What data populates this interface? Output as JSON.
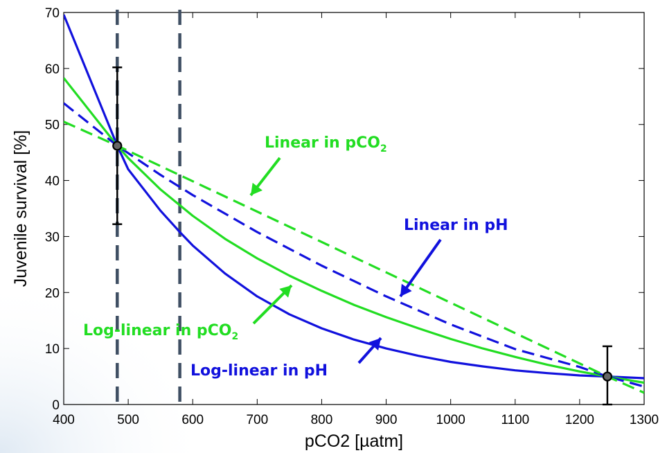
{
  "chart_data": {
    "type": "line",
    "xlabel": "pCO2 [µatm]",
    "ylabel": "Juvenile survival [%]",
    "xlim": [
      400,
      1300
    ],
    "ylim": [
      0,
      70
    ],
    "xticks": [
      400,
      500,
      600,
      700,
      800,
      900,
      1000,
      1100,
      1200,
      1300
    ],
    "yticks": [
      0,
      10,
      20,
      30,
      40,
      50,
      60,
      70
    ],
    "grid": false,
    "colors": {
      "green": "#22dd22",
      "blue": "#1111dd",
      "vline": "#3f4f63",
      "error": "#000000"
    },
    "series": [
      {
        "key": "log_linear_ph",
        "color": "#1111dd",
        "dash": false,
        "x": [
          400,
          450,
          483,
          500,
          550,
          580,
          600,
          650,
          700,
          750,
          800,
          850,
          900,
          950,
          1000,
          1050,
          1100,
          1150,
          1200,
          1243,
          1300
        ],
        "y": [
          69.6,
          55.5,
          46.2,
          42.0,
          34.6,
          30.8,
          28.4,
          23.4,
          19.3,
          16.1,
          13.6,
          11.6,
          10.0,
          8.7,
          7.6,
          6.8,
          6.1,
          5.6,
          5.2,
          5.0,
          4.7
        ]
      },
      {
        "key": "log_linear_pco2",
        "color": "#22dd22",
        "dash": false,
        "x": [
          400,
          450,
          483,
          500,
          550,
          600,
          650,
          700,
          750,
          800,
          850,
          900,
          950,
          1000,
          1050,
          1100,
          1150,
          1200,
          1243,
          1300
        ],
        "y": [
          58.3,
          51.0,
          46.2,
          44.0,
          38.4,
          33.7,
          29.6,
          26.1,
          23.0,
          20.3,
          17.8,
          15.6,
          13.6,
          11.7,
          10.0,
          8.5,
          7.1,
          5.9,
          5.0,
          3.9
        ]
      },
      {
        "key": "linear_ph",
        "color": "#1111dd",
        "dash": true,
        "x": [
          400,
          483,
          550,
          600,
          700,
          800,
          900,
          1000,
          1100,
          1200,
          1243,
          1300
        ],
        "y": [
          53.8,
          46.2,
          41.0,
          37.4,
          30.8,
          24.8,
          19.3,
          14.3,
          9.9,
          6.7,
          5.0,
          3.2
        ]
      },
      {
        "key": "linear_pco2",
        "color": "#22dd22",
        "dash": true,
        "x": [
          400,
          483,
          1243,
          1300
        ],
        "y": [
          50.5,
          46.2,
          5.0,
          2.1
        ]
      }
    ],
    "data_points": [
      {
        "x": 483,
        "y": 46.2,
        "err_low": 32.2,
        "err_high": 60.2
      },
      {
        "x": 1243,
        "y": 5.0,
        "err_low": 0.0,
        "err_high": 10.4
      }
    ],
    "vertical_lines": [
      483,
      580
    ],
    "annotations": [
      {
        "key": "linear_pco2",
        "text": "Linear in pCO",
        "sub": "2",
        "color": "#22dd22"
      },
      {
        "key": "linear_ph",
        "text": "Linear in pH",
        "sub": "",
        "color": "#1111dd"
      },
      {
        "key": "log_linear_pco2",
        "text": "Log-linear in pCO",
        "sub": "2",
        "color": "#22dd22"
      },
      {
        "key": "log_linear_ph",
        "text": "Log-linear in pH",
        "sub": "",
        "color": "#1111dd"
      }
    ]
  }
}
